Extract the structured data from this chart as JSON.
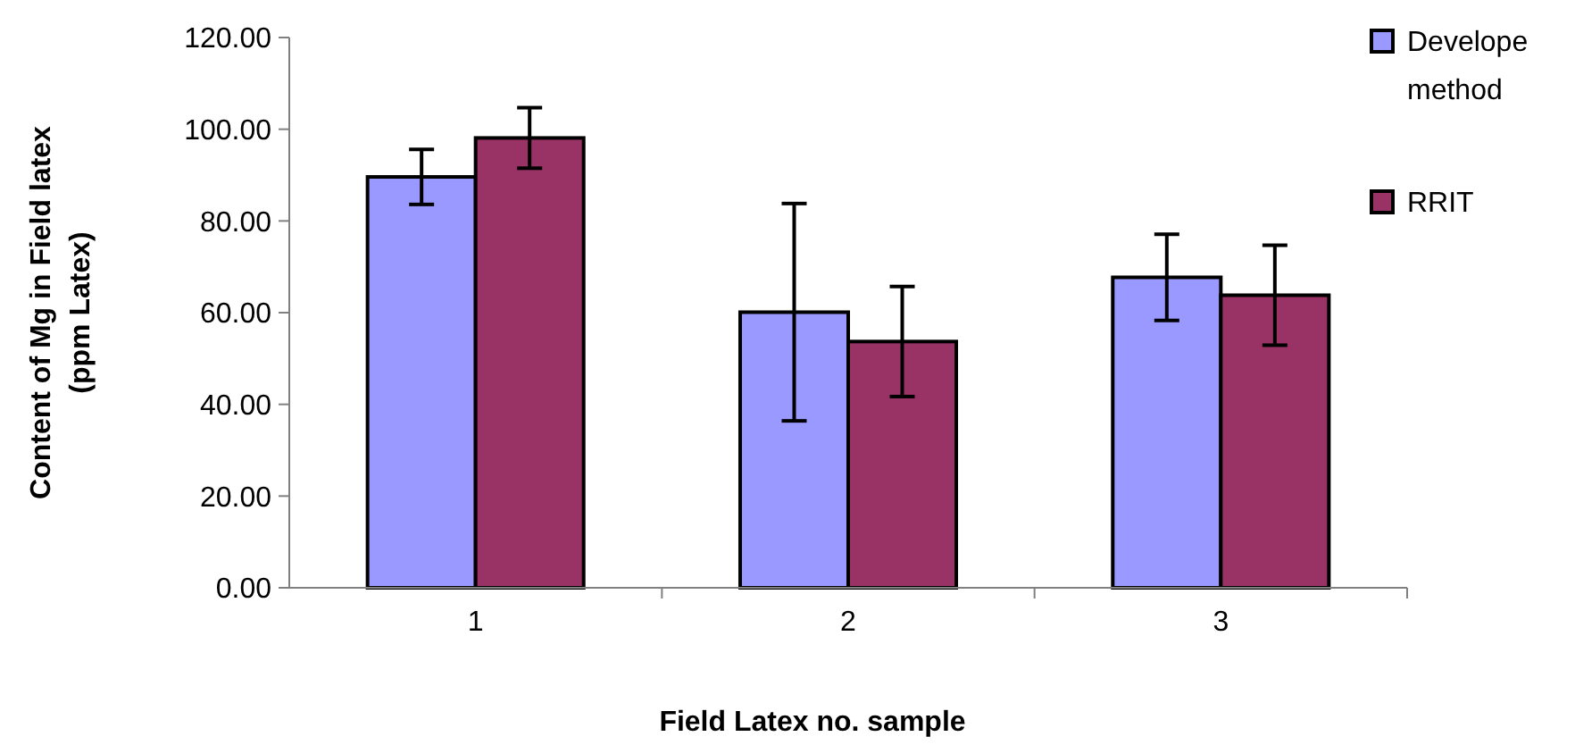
{
  "chart_data": {
    "type": "bar",
    "xlabel": "Field Latex no. sample",
    "ylabel": "Content of Mg in Field latex (ppm Latex)",
    "categories": [
      "1",
      "2",
      "3"
    ],
    "series": [
      {
        "name": "Develope method",
        "color": "#9999ff",
        "values": [
          89.6,
          60.1,
          67.7
        ],
        "errors": [
          6.0,
          23.7,
          9.4
        ]
      },
      {
        "name": "RRIT",
        "color": "#993366",
        "values": [
          98.1,
          53.7,
          63.8
        ],
        "errors": [
          6.6,
          12.0,
          10.9
        ]
      }
    ],
    "ylim": [
      0,
      120
    ],
    "yticks": [
      {
        "value": 0,
        "label": "0.00"
      },
      {
        "value": 20,
        "label": "20.00"
      },
      {
        "value": 40,
        "label": "40.00"
      },
      {
        "value": 60,
        "label": "60.00"
      },
      {
        "value": 80,
        "label": "80.00"
      },
      {
        "value": 100,
        "label": "100.00"
      },
      {
        "value": 120,
        "label": "120.00"
      }
    ],
    "legend": "top right"
  }
}
